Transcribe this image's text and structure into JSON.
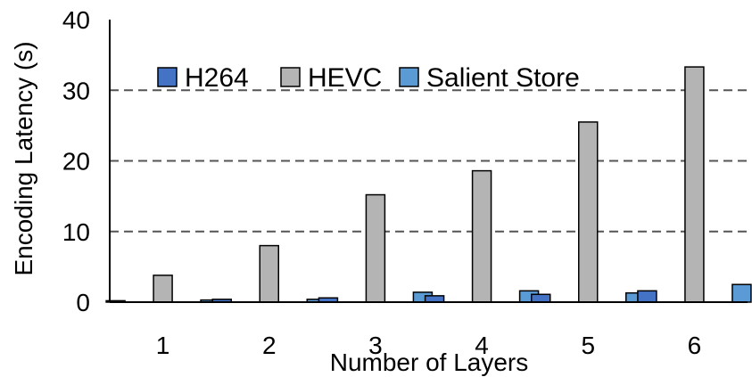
{
  "chart_data": {
    "type": "bar",
    "categories": [
      "1",
      "2",
      "3",
      "4",
      "5",
      "6"
    ],
    "series": [
      {
        "name": "H264",
        "color": "#4472C4",
        "values": [
          0.2,
          0.4,
          0.6,
          0.9,
          1.1,
          1.6
        ]
      },
      {
        "name": "HEVC",
        "color": "#B4B4B4",
        "values": [
          3.8,
          8.0,
          15.2,
          18.6,
          25.5,
          33.3
        ]
      },
      {
        "name": "Salient Store",
        "color": "#5B9BD5",
        "values": [
          0.3,
          0.4,
          1.4,
          1.6,
          1.3,
          2.5
        ]
      }
    ],
    "title": "",
    "xlabel": "Number of Layers",
    "ylabel": "Encoding Latency (s)",
    "ylim": [
      0,
      40
    ],
    "yticks": [
      0,
      10,
      20,
      30,
      40
    ],
    "grid": "dashed horizontal",
    "legend": "top-left"
  }
}
